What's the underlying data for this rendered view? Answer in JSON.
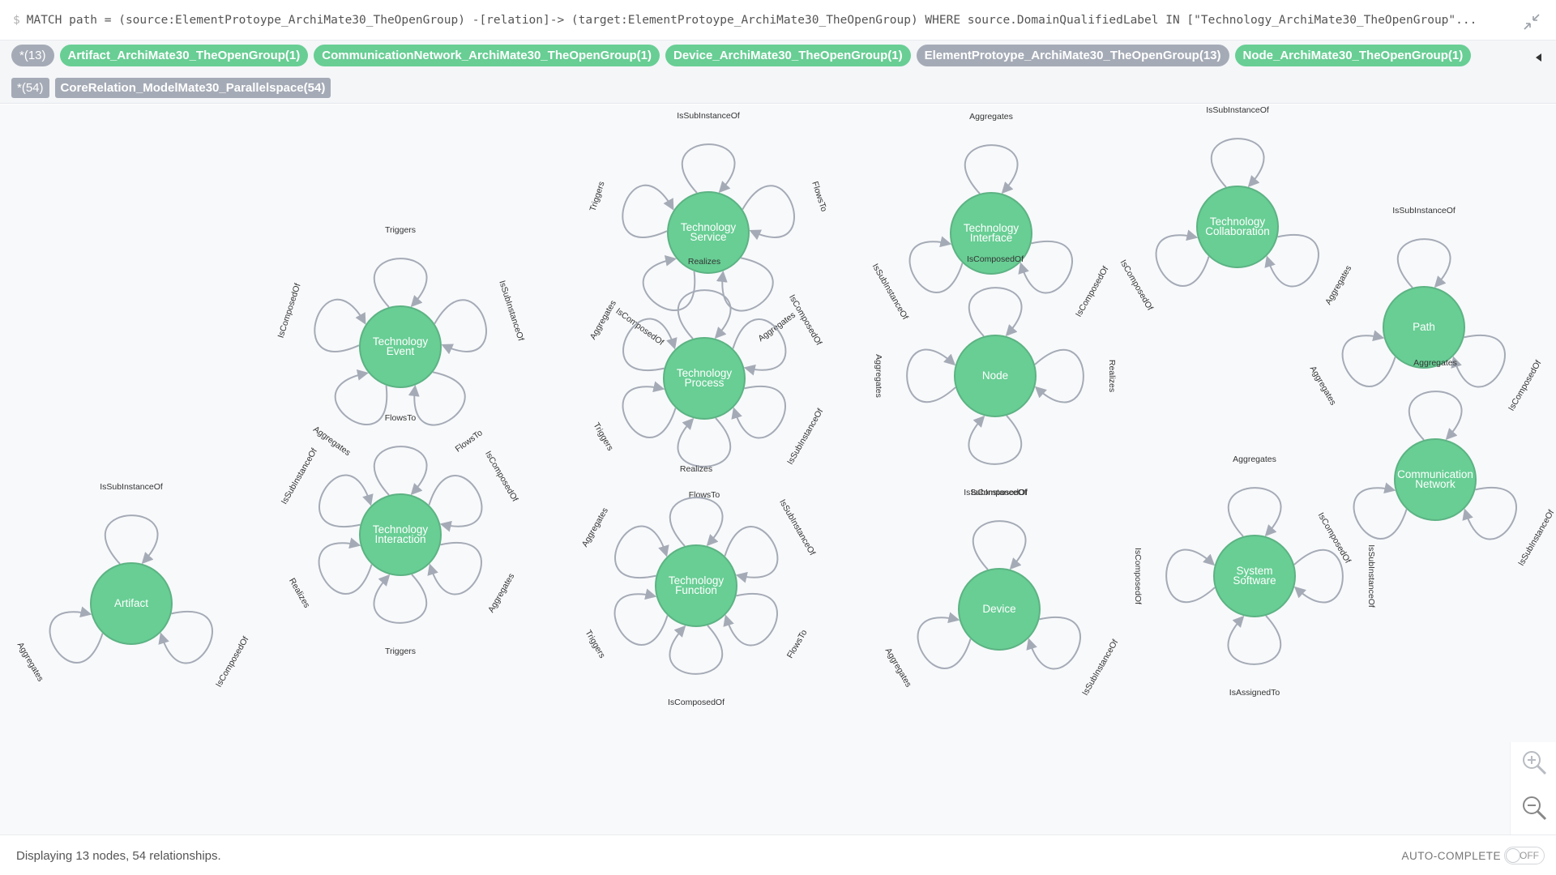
{
  "query": {
    "prompt": "$",
    "text": "MATCH path = (source:ElementProtoype_ArchiMate30_TheOpenGroup) -[relation]-> (target:ElementProtoype_ArchiMate30_TheOpenGroup) WHERE source.DomainQualifiedLabel IN [\"Technology_ArchiMate30_TheOpenGroup\"..."
  },
  "legend": {
    "labels": [
      {
        "text": "*(13)",
        "kind": "all"
      },
      {
        "text": "Artifact_ArchiMate30_TheOpenGroup(1)",
        "kind": "green"
      },
      {
        "text": "CommunicationNetwork_ArchiMate30_TheOpenGroup(1)",
        "kind": "green"
      },
      {
        "text": "Device_ArchiMate30_TheOpenGroup(1)",
        "kind": "green"
      },
      {
        "text": "ElementProtoype_ArchiMate30_TheOpenGroup(13)",
        "kind": "grey"
      },
      {
        "text": "Node_ArchiMate30_TheOpenGroup(1)",
        "kind": "green"
      }
    ],
    "relationships": [
      {
        "text": "*(54)",
        "kind": "all"
      },
      {
        "text": "CoreRelation_ModelMate30_Parallelspace(54)",
        "kind": "rel"
      }
    ]
  },
  "graph": {
    "node_color": "#68ce94",
    "relationship_color": "#a5abb6",
    "nodes": [
      {
        "name": [
          "Technology",
          "Service"
        ],
        "loops": [
          "IsSubInstanceOf",
          "FlowsTo",
          "Aggregates",
          "IsComposedOf",
          "Triggers"
        ]
      },
      {
        "name": [
          "Technology",
          "Interface"
        ],
        "loops": [
          "Aggregates",
          "IsComposedOf",
          "IsSubInstanceOf"
        ]
      },
      {
        "name": [
          "Technology",
          "Collaboration"
        ],
        "loops": [
          "IsSubInstanceOf",
          "Aggregates",
          "IsComposedOf"
        ]
      },
      {
        "name": [
          "Path"
        ],
        "loops": [
          "IsSubInstanceOf",
          "IsComposedOf",
          "Aggregates"
        ]
      },
      {
        "name": [
          "Technology",
          "Event"
        ],
        "loops": [
          "Triggers",
          "IsSubInstanceOf",
          "FlowsTo",
          "Aggregates",
          "IsComposedOf"
        ]
      },
      {
        "name": [
          "Technology",
          "Process"
        ],
        "loops": [
          "Realizes",
          "IsComposedOf",
          "IsSubInstanceOf",
          "FlowsTo",
          "Triggers",
          "Aggregates"
        ]
      },
      {
        "name": [
          "Node"
        ],
        "loops": [
          "IsComposedOf",
          "Realizes",
          "IsSubInstanceOf",
          "Aggregates"
        ]
      },
      {
        "name": [
          "Communication",
          "Network"
        ],
        "loops": [
          "Aggregates",
          "IsSubInstanceOf",
          "IsComposedOf"
        ]
      },
      {
        "name": [
          "Technology",
          "Interaction"
        ],
        "loops": [
          "FlowsTo",
          "IsComposedOf",
          "Aggregates",
          "Triggers",
          "Realizes",
          "IsSubInstanceOf"
        ]
      },
      {
        "name": [
          "Technology",
          "Function"
        ],
        "loops": [
          "Realizes",
          "IsSubInstanceOf",
          "FlowsTo",
          "IsComposedOf",
          "Triggers",
          "Aggregates"
        ]
      },
      {
        "name": [
          "Device"
        ],
        "loops": [
          "IsComposedOf",
          "IsSubInstanceOf",
          "Aggregates"
        ]
      },
      {
        "name": [
          "System",
          "Software"
        ],
        "loops": [
          "Aggregates",
          "IsSubInstanceOf",
          "IsAssignedTo",
          "IsComposedOf"
        ]
      },
      {
        "name": [
          "Artifact"
        ],
        "loops": [
          "IsSubInstanceOf",
          "IsComposedOf",
          "Aggregates"
        ]
      }
    ]
  },
  "footer": {
    "status": "Displaying 13 nodes, 54 relationships.",
    "autocomplete_label": "AUTO-COMPLETE",
    "toggle_state": "OFF"
  }
}
